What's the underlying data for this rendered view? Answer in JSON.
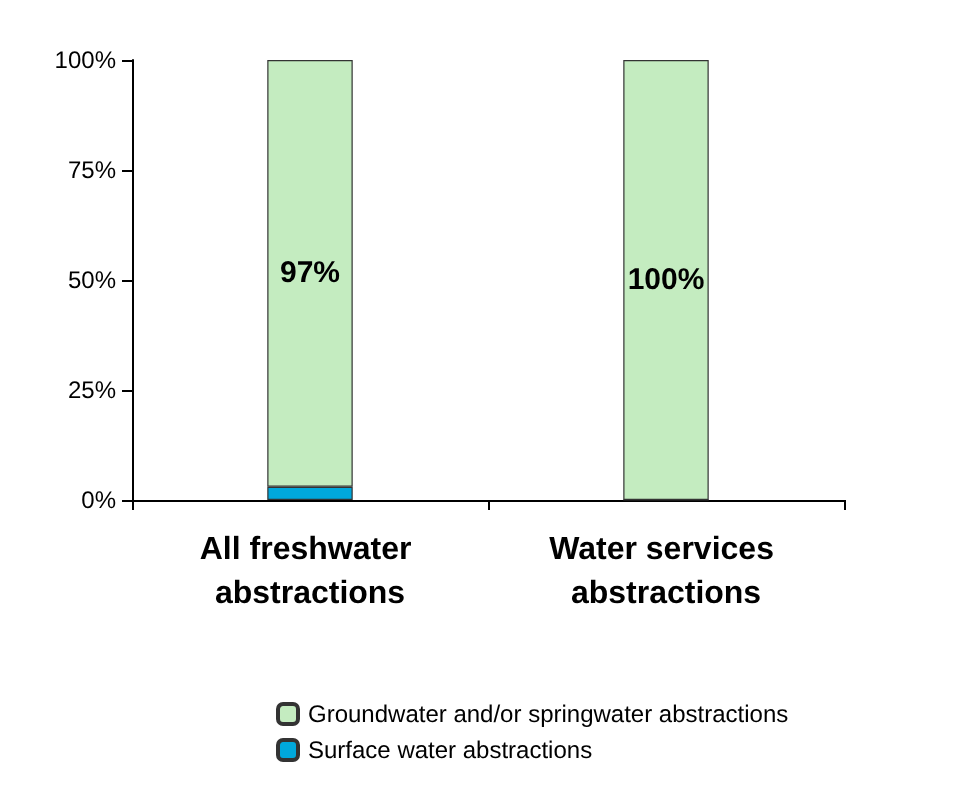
{
  "chart_data": {
    "type": "bar",
    "stacked": true,
    "categories": [
      "All freshwater abstractions",
      "Water services abstractions"
    ],
    "series": [
      {
        "name": "Surface water abstractions",
        "color": "#00a8dc",
        "values": [
          3,
          0
        ]
      },
      {
        "name": "Groundwater and/or springwater abstractions",
        "color": "#c4ecc0",
        "values": [
          97,
          100
        ],
        "value_labels": [
          "97%",
          "100%"
        ]
      }
    ],
    "ylim": [
      0,
      100
    ],
    "yticks": [
      {
        "value": 0,
        "label": "0%"
      },
      {
        "value": 25,
        "label": "25%"
      },
      {
        "value": 50,
        "label": "50%"
      },
      {
        "value": 75,
        "label": "75%"
      },
      {
        "value": 100,
        "label": "100%"
      }
    ],
    "grid": false,
    "legend": "bottom"
  }
}
